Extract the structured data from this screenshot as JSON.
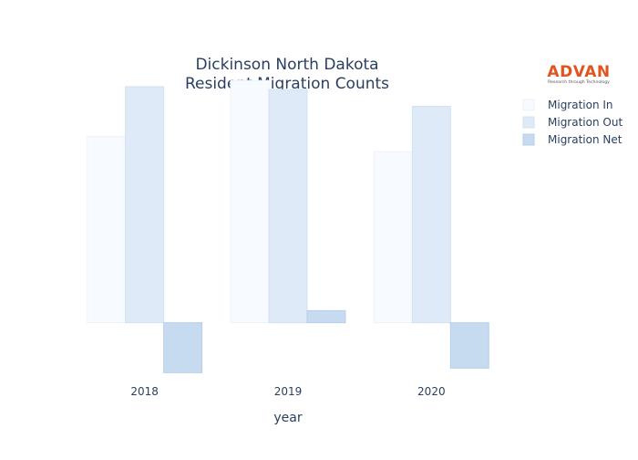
{
  "logo": {
    "name": "ADVAN",
    "tagline": "Research through Technology",
    "color": "#e0541e"
  },
  "chart_data": {
    "type": "bar",
    "title_lines": [
      "Dickinson North Dakota",
      "Resident Migration Counts"
    ],
    "xlabel": "year",
    "ylabel": "",
    "categories": [
      "2018",
      "2019",
      "2020"
    ],
    "ylim": [
      -3400,
      16500
    ],
    "grid": false,
    "legend_position": "top-right",
    "series": [
      {
        "name": "Migration In",
        "values": [
          12300,
          16000,
          11300
        ],
        "color": "#f7fafe",
        "stroke": "#eef2f8"
      },
      {
        "name": "Migration Out",
        "values": [
          15600,
          15400,
          14300
        ],
        "color": "#deeaf7",
        "stroke": "#d2e1f2"
      },
      {
        "name": "Migration Net",
        "values": [
          -3300,
          800,
          -3000
        ],
        "color": "#c6daf0",
        "stroke": "#b6cfea"
      }
    ]
  }
}
